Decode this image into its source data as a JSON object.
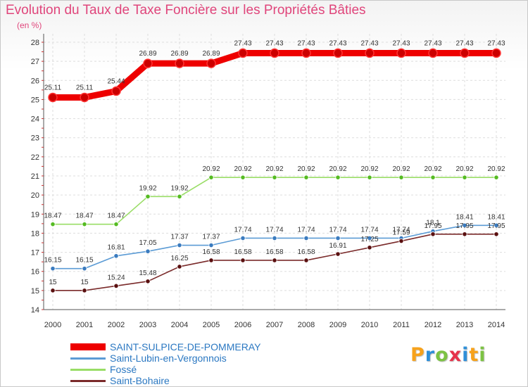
{
  "chart_data": {
    "type": "line",
    "title": "Evolution du Taux de Taxe Foncière sur les Propriétés Bâties",
    "ylabel": "(en %)",
    "xlabel": "",
    "categories": [
      "2000",
      "2001",
      "2002",
      "2003",
      "2004",
      "2005",
      "2006",
      "2007",
      "2008",
      "2009",
      "2010",
      "2011",
      "2012",
      "2013",
      "2014"
    ],
    "ylim": [
      14,
      28
    ],
    "yticks": [
      14,
      15,
      16,
      17,
      18,
      19,
      20,
      21,
      22,
      23,
      24,
      25,
      26,
      27,
      28
    ],
    "grid": true,
    "series": [
      {
        "name": "SAINT-SULPICE-DE-POMMERAY",
        "color": "#ee0000",
        "marker_color": "#cc0000",
        "values": [
          25.11,
          25.11,
          25.44,
          26.89,
          26.89,
          26.89,
          27.43,
          27.43,
          27.43,
          27.43,
          27.43,
          27.43,
          27.43,
          27.43,
          27.43
        ],
        "labels": [
          "25.11",
          "25.11",
          "25.44",
          "26.89",
          "26.89",
          "26.89",
          "27.43",
          "27.43",
          "27.43",
          "27.43",
          "27.43",
          "27.43",
          "27.43",
          "27.43",
          "27.43"
        ]
      },
      {
        "name": "Saint-Lubin-en-Vergonnois",
        "color": "#5b9bd5",
        "marker_color": "#3a7bbf",
        "values": [
          16.15,
          16.15,
          16.81,
          17.05,
          17.37,
          17.37,
          17.74,
          17.74,
          17.74,
          17.74,
          17.74,
          17.74,
          18.1,
          18.41,
          18.41
        ],
        "labels": [
          "16.15",
          "16.15",
          "16.81",
          "17.05",
          "17.37",
          "17.37",
          "17.74",
          "17.74",
          "17.74",
          "17.74",
          "17.74",
          "17.74",
          "18.1",
          "18.41",
          "18.41"
        ]
      },
      {
        "name": "Fossé",
        "color": "#99dd66",
        "marker_color": "#55bb22",
        "values": [
          18.47,
          18.47,
          18.47,
          19.92,
          19.92,
          20.92,
          20.92,
          20.92,
          20.92,
          20.92,
          20.92,
          20.92,
          20.92,
          20.92,
          20.92
        ],
        "labels": [
          "18.47",
          "18.47",
          "18.47",
          "19.92",
          "19.92",
          "20.92",
          "20.92",
          "20.92",
          "20.92",
          "20.92",
          "20.92",
          "20.92",
          "20.92",
          "20.92",
          "20.92"
        ]
      },
      {
        "name": "Saint-Bohaire",
        "color": "#7a2a2a",
        "marker_color": "#5a1010",
        "values": [
          15,
          15,
          15.24,
          15.48,
          16.25,
          16.58,
          16.58,
          16.58,
          16.58,
          16.91,
          17.25,
          17.59,
          17.95,
          17.95,
          17.95
        ],
        "labels": [
          "15",
          "15",
          "15.24",
          "15.48",
          "16.25",
          "16.58",
          "16.58",
          "16.58",
          "16.58",
          "16.91",
          "17.25",
          "17.59",
          "17.95",
          "17.95",
          "17.95"
        ]
      }
    ]
  },
  "legend": {
    "items": [
      {
        "label": "SAINT-SULPICE-DE-POMMERAY",
        "color": "#ee0000"
      },
      {
        "label": "Saint-Lubin-en-Vergonnois",
        "color": "#5b9bd5"
      },
      {
        "label": "Fossé",
        "color": "#99dd66"
      },
      {
        "label": "Saint-Bohaire",
        "color": "#7a2a2a"
      }
    ]
  },
  "logo": {
    "letters": [
      "P",
      "r",
      "o",
      "x",
      "i",
      "t",
      "i"
    ],
    "colors": [
      "#f7a21b",
      "#2f8fd8",
      "#7cc243",
      "#e6334b",
      "#2f8fd8",
      "#f7a21b",
      "#7cc243"
    ]
  }
}
